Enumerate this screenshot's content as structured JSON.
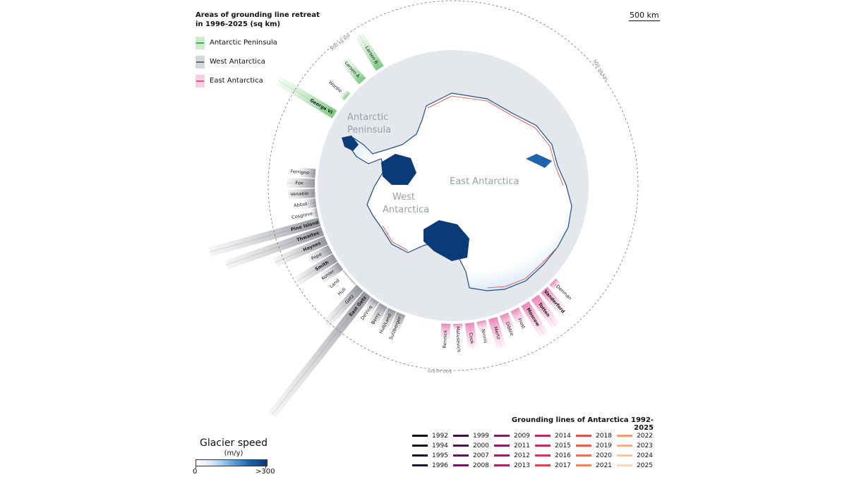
{
  "legend": {
    "title_line1": "Areas of grounding line retreat",
    "title_line2": "in 1996-2025 (sq km)",
    "items": [
      {
        "label": "Antarctic Peninsula",
        "fill": "#cdeccd",
        "line": "#43b04a"
      },
      {
        "label": "West Antarctica",
        "fill": "#d4d6d9",
        "line": "#666a70"
      },
      {
        "label": "East Antarctica",
        "fill": "#f8cfe2",
        "line": "#e0559a"
      }
    ]
  },
  "scale": {
    "label": "500 km"
  },
  "ring": {
    "label": "500 sq km"
  },
  "map_labels": {
    "peninsula_1": "Antarctic",
    "peninsula_2": "Peninsula",
    "west_1": "West",
    "west_2": "Antarctica",
    "east": "East Antarctica"
  },
  "colors": {
    "ice_shelf": "#0b3a78",
    "ocean": "#e4e7ec",
    "ice": "#ffffff",
    "grounding_recent": "#e0403a"
  },
  "chart_data": {
    "type": "radial-bar",
    "value_unit": "sq km",
    "ring_reference": 500,
    "groups": [
      {
        "region": "Antarctic Peninsula",
        "glaciers": [
          {
            "name": "Larsen B",
            "bold": false,
            "area": 420
          },
          {
            "name": "Larsen A",
            "bold": false,
            "area": 300
          },
          {
            "name": "Wordie",
            "bold": false,
            "area": 60
          },
          {
            "name": "George VI",
            "bold": true,
            "area": 700
          }
        ]
      },
      {
        "region": "West Antarctica",
        "glaciers": [
          {
            "name": "Ferrigno",
            "bold": false,
            "area": 170
          },
          {
            "name": "Fox",
            "bold": false,
            "area": 300
          },
          {
            "name": "Venable",
            "bold": false,
            "area": 290
          },
          {
            "name": "Abbot",
            "bold": false,
            "area": 130
          },
          {
            "name": "Cosgrove",
            "bold": false,
            "area": 60
          },
          {
            "name": "Pine Island",
            "bold": true,
            "area": 1220
          },
          {
            "name": "Thwaites",
            "bold": true,
            "area": 1100
          },
          {
            "name": "Haynes",
            "bold": true,
            "area": 600
          },
          {
            "name": "Pope",
            "bold": false,
            "area": 250
          },
          {
            "name": "Smith",
            "bold": true,
            "area": 480
          },
          {
            "name": "Kohler",
            "bold": false,
            "area": 240
          },
          {
            "name": "Land",
            "bold": false,
            "area": 20
          },
          {
            "name": "Hull",
            "bold": false,
            "area": 20
          },
          {
            "name": "Getz",
            "bold": false,
            "area": 530
          },
          {
            "name": "East Getz",
            "bold": true,
            "area": 1650
          },
          {
            "name": "DeVicq",
            "bold": false,
            "area": 130
          },
          {
            "name": "Berry",
            "bold": false,
            "area": 240
          },
          {
            "name": "Hull/Land",
            "bold": false,
            "area": 230
          },
          {
            "name": "Sulzberger",
            "bold": false,
            "area": 200
          }
        ]
      },
      {
        "region": "East Antarctica",
        "glaciers": [
          {
            "name": "Rennick",
            "bold": false,
            "area": 170
          },
          {
            "name": "Matusevich",
            "bold": false,
            "area": 70
          },
          {
            "name": "Cook",
            "bold": false,
            "area": 270
          },
          {
            "name": "Ninnis",
            "bold": false,
            "area": 100
          },
          {
            "name": "Mertz",
            "bold": false,
            "area": 330
          },
          {
            "name": "Dibble",
            "bold": false,
            "area": 180
          },
          {
            "name": "Frost",
            "bold": false,
            "area": 160
          },
          {
            "name": "Moscow",
            "bold": true,
            "area": 390
          },
          {
            "name": "Totten",
            "bold": true,
            "area": 380
          },
          {
            "name": "Vanderford",
            "bold": true,
            "area": 300
          },
          {
            "name": "Denman",
            "bold": false,
            "area": 80
          }
        ]
      }
    ]
  },
  "glacier_speed": {
    "title": "Glacier speed",
    "unit": "(m/y)",
    "min": "0",
    "max": ">300"
  },
  "grounding_legend": {
    "title": "Grounding lines of Antarctica 1992-2025",
    "columns": [
      [
        {
          "year": "1992",
          "color": "#050505"
        },
        {
          "year": "1994",
          "color": "#0f0a1e"
        },
        {
          "year": "1995",
          "color": "#190d2e"
        },
        {
          "year": "1996",
          "color": "#26103a"
        }
      ],
      [
        {
          "year": "1999",
          "color": "#3c1148"
        },
        {
          "year": "2000",
          "color": "#4d1452"
        },
        {
          "year": "2007",
          "color": "#5f175a"
        },
        {
          "year": "2008",
          "color": "#6f1a5e"
        }
      ],
      [
        {
          "year": "2009",
          "color": "#7f1d62"
        },
        {
          "year": "2011",
          "color": "#8f1f63"
        },
        {
          "year": "2012",
          "color": "#9e2263"
        },
        {
          "year": "2013",
          "color": "#ad2562"
        }
      ],
      [
        {
          "year": "2014",
          "color": "#bb295f"
        },
        {
          "year": "2015",
          "color": "#c72e5b"
        },
        {
          "year": "2016",
          "color": "#d33656"
        },
        {
          "year": "2017",
          "color": "#dc4150"
        }
      ],
      [
        {
          "year": "2018",
          "color": "#e44f4b"
        },
        {
          "year": "2019",
          "color": "#ea5e4d"
        },
        {
          "year": "2020",
          "color": "#ef7154"
        },
        {
          "year": "2021",
          "color": "#f2835f"
        }
      ],
      [
        {
          "year": "2022",
          "color": "#f59a73"
        },
        {
          "year": "2023",
          "color": "#f7ae8b"
        },
        {
          "year": "2024",
          "color": "#f8c4a6"
        },
        {
          "year": "2025",
          "color": "#f9d8c2"
        }
      ]
    ]
  }
}
